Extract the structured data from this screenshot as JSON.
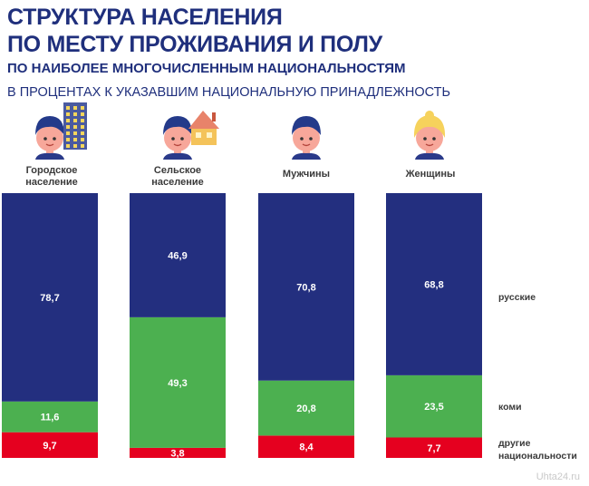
{
  "header": {
    "title_line1": "СТРУКТУРА НАСЕЛЕНИЯ",
    "title_line2": "ПО МЕСТУ ПРОЖИВАНИЯ  И ПОЛУ",
    "subtitle": "ПО НАИБОЛЕЕ  МНОГОЧИСЛЕННЫМ  НАЦИОНАЛЬНОСТЯМ",
    "units_note": "В ПРОЦЕНТАХ  К УКАЗАВШИМ  НАЦИОНАЛЬНУЮ  ПРИНАДЛЕЖНОСТЬ"
  },
  "watermark": "Uhta24.ru",
  "colors": {
    "russian": "#232f7f",
    "komi": "#4cb050",
    "other": "#e5001f",
    "title": "#1f2f7c",
    "label_text": "#3a3a3a"
  },
  "icons": [
    "man-city-building-icon",
    "man-rural-house-icon",
    "man-icon",
    "woman-icon"
  ],
  "chart_data": {
    "type": "bar",
    "stacked": true,
    "categories": [
      "Городское население",
      "Сельское население",
      "Мужчины",
      "Женщины"
    ],
    "category_label_lines": [
      [
        "Городское",
        "население"
      ],
      [
        "Сельское",
        "население"
      ],
      [
        "Мужчины"
      ],
      [
        "Женщины"
      ]
    ],
    "series": [
      {
        "name": "русские",
        "values": [
          78.7,
          46.9,
          70.8,
          68.8
        ],
        "labels": [
          "78,7",
          "46,9",
          "70,8",
          "68,8"
        ],
        "color": "#232f7f"
      },
      {
        "name": "коми",
        "values": [
          11.6,
          49.3,
          20.8,
          23.5
        ],
        "labels": [
          "11,6",
          "49,3",
          "20,8",
          "23,5"
        ],
        "color": "#4cb050"
      },
      {
        "name": "другие национальности",
        "values": [
          9.7,
          3.8,
          8.4,
          7.7
        ],
        "labels": [
          "9,7",
          "3,8",
          "8,4",
          "7,7"
        ],
        "color": "#e5001f"
      }
    ],
    "legend_placement": "right",
    "legend_lines": [
      [
        "русские"
      ],
      [
        "коми"
      ],
      [
        "другие",
        "национальности"
      ]
    ],
    "ylim": [
      0,
      100
    ]
  }
}
